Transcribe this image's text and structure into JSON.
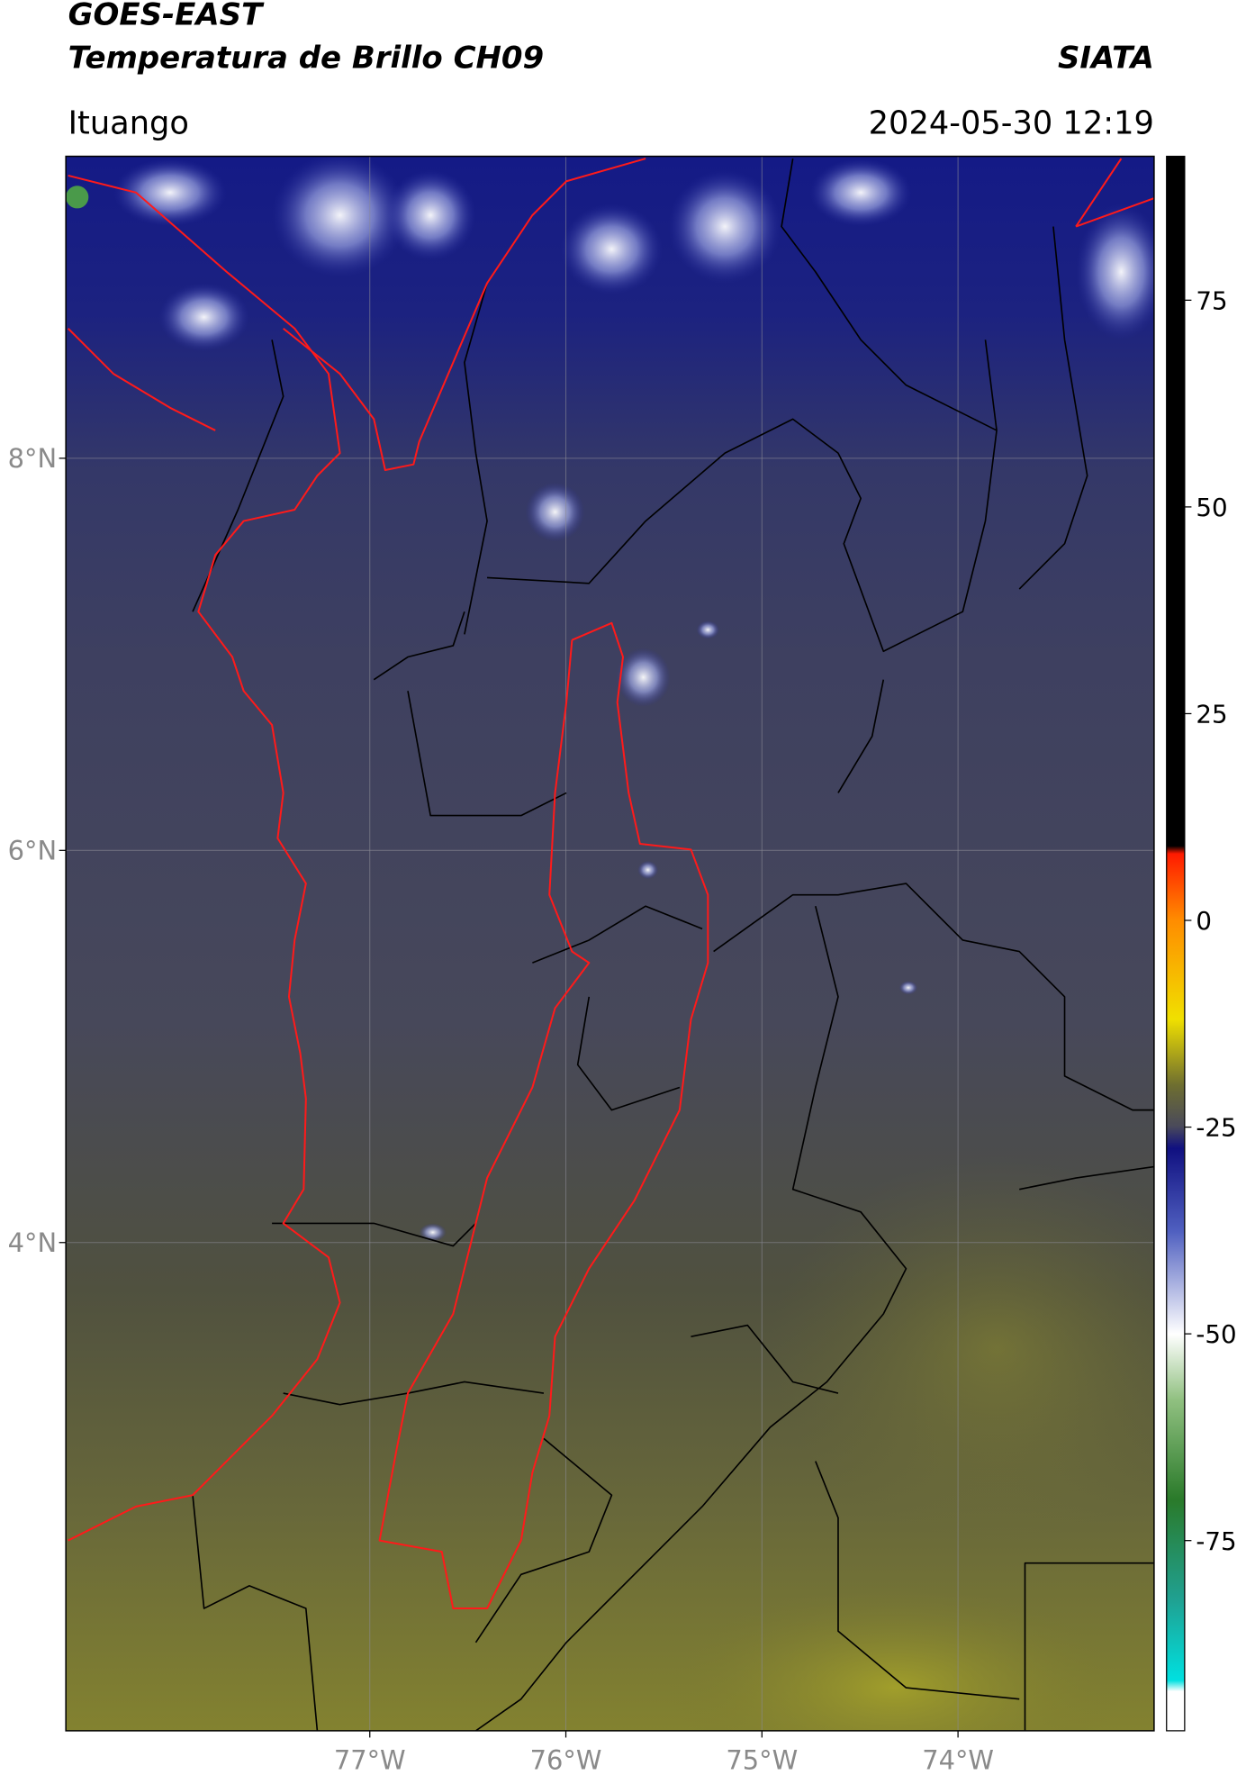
{
  "chart_data": {
    "type": "map",
    "title": "GOES-EAST",
    "subtitle": "Temperatura de Brillo CH09",
    "source": "SIATA",
    "location": "Ituango",
    "datetime": "2024-05-30 12:19",
    "xlim": [
      -78.55,
      -73.0
    ],
    "ylim": [
      1.51,
      9.54
    ],
    "xticks": [
      {
        "value": -77,
        "label": "77°W"
      },
      {
        "value": -76,
        "label": "76°W"
      },
      {
        "value": -75,
        "label": "75°W"
      },
      {
        "value": -74,
        "label": "74°W"
      }
    ],
    "yticks": [
      {
        "value": 8,
        "label": "8°N"
      },
      {
        "value": 6,
        "label": "6°N"
      },
      {
        "value": 4,
        "label": "4°N"
      }
    ],
    "grid": true,
    "colorbar": {
      "clim": [
        -98,
        92.4
      ],
      "ticks": [
        75,
        50,
        25,
        0,
        -25,
        -50,
        -75
      ]
    }
  }
}
